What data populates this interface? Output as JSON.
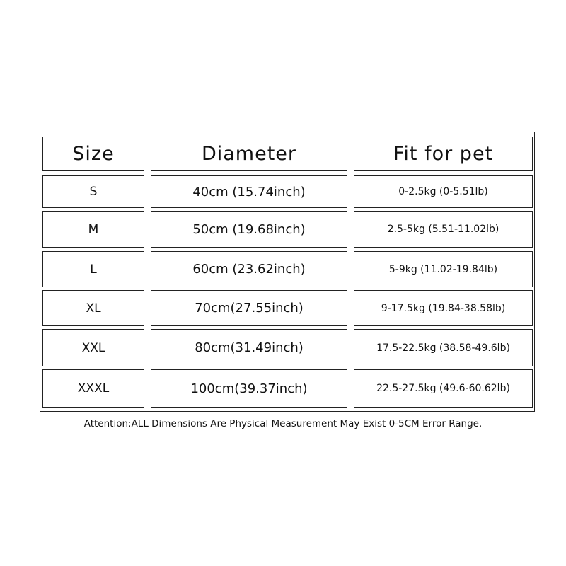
{
  "table": {
    "columns": [
      "Size",
      "Diameter",
      "Fit for pet"
    ],
    "rows": [
      [
        "S",
        "40cm (15.74inch)",
        "0-2.5kg (0-5.51lb)"
      ],
      [
        "M",
        "50cm (19.68inch)",
        "2.5-5kg (5.51-11.02lb)"
      ],
      [
        "L",
        "60cm (23.62inch)",
        "5-9kg (11.02-19.84lb)"
      ],
      [
        "XL",
        "70cm(27.55inch)",
        "9-17.5kg (19.84-38.58lb)"
      ],
      [
        "XXL",
        "80cm(31.49inch)",
        "17.5-22.5kg (38.58-49.6lb)"
      ],
      [
        "XXXL",
        "100cm(39.37inch)",
        "22.5-27.5kg (49.6-60.62lb)"
      ]
    ]
  },
  "note": "Attention:ALL Dimensions Are Physical Measurement May Exist 0-5CM Error Range."
}
